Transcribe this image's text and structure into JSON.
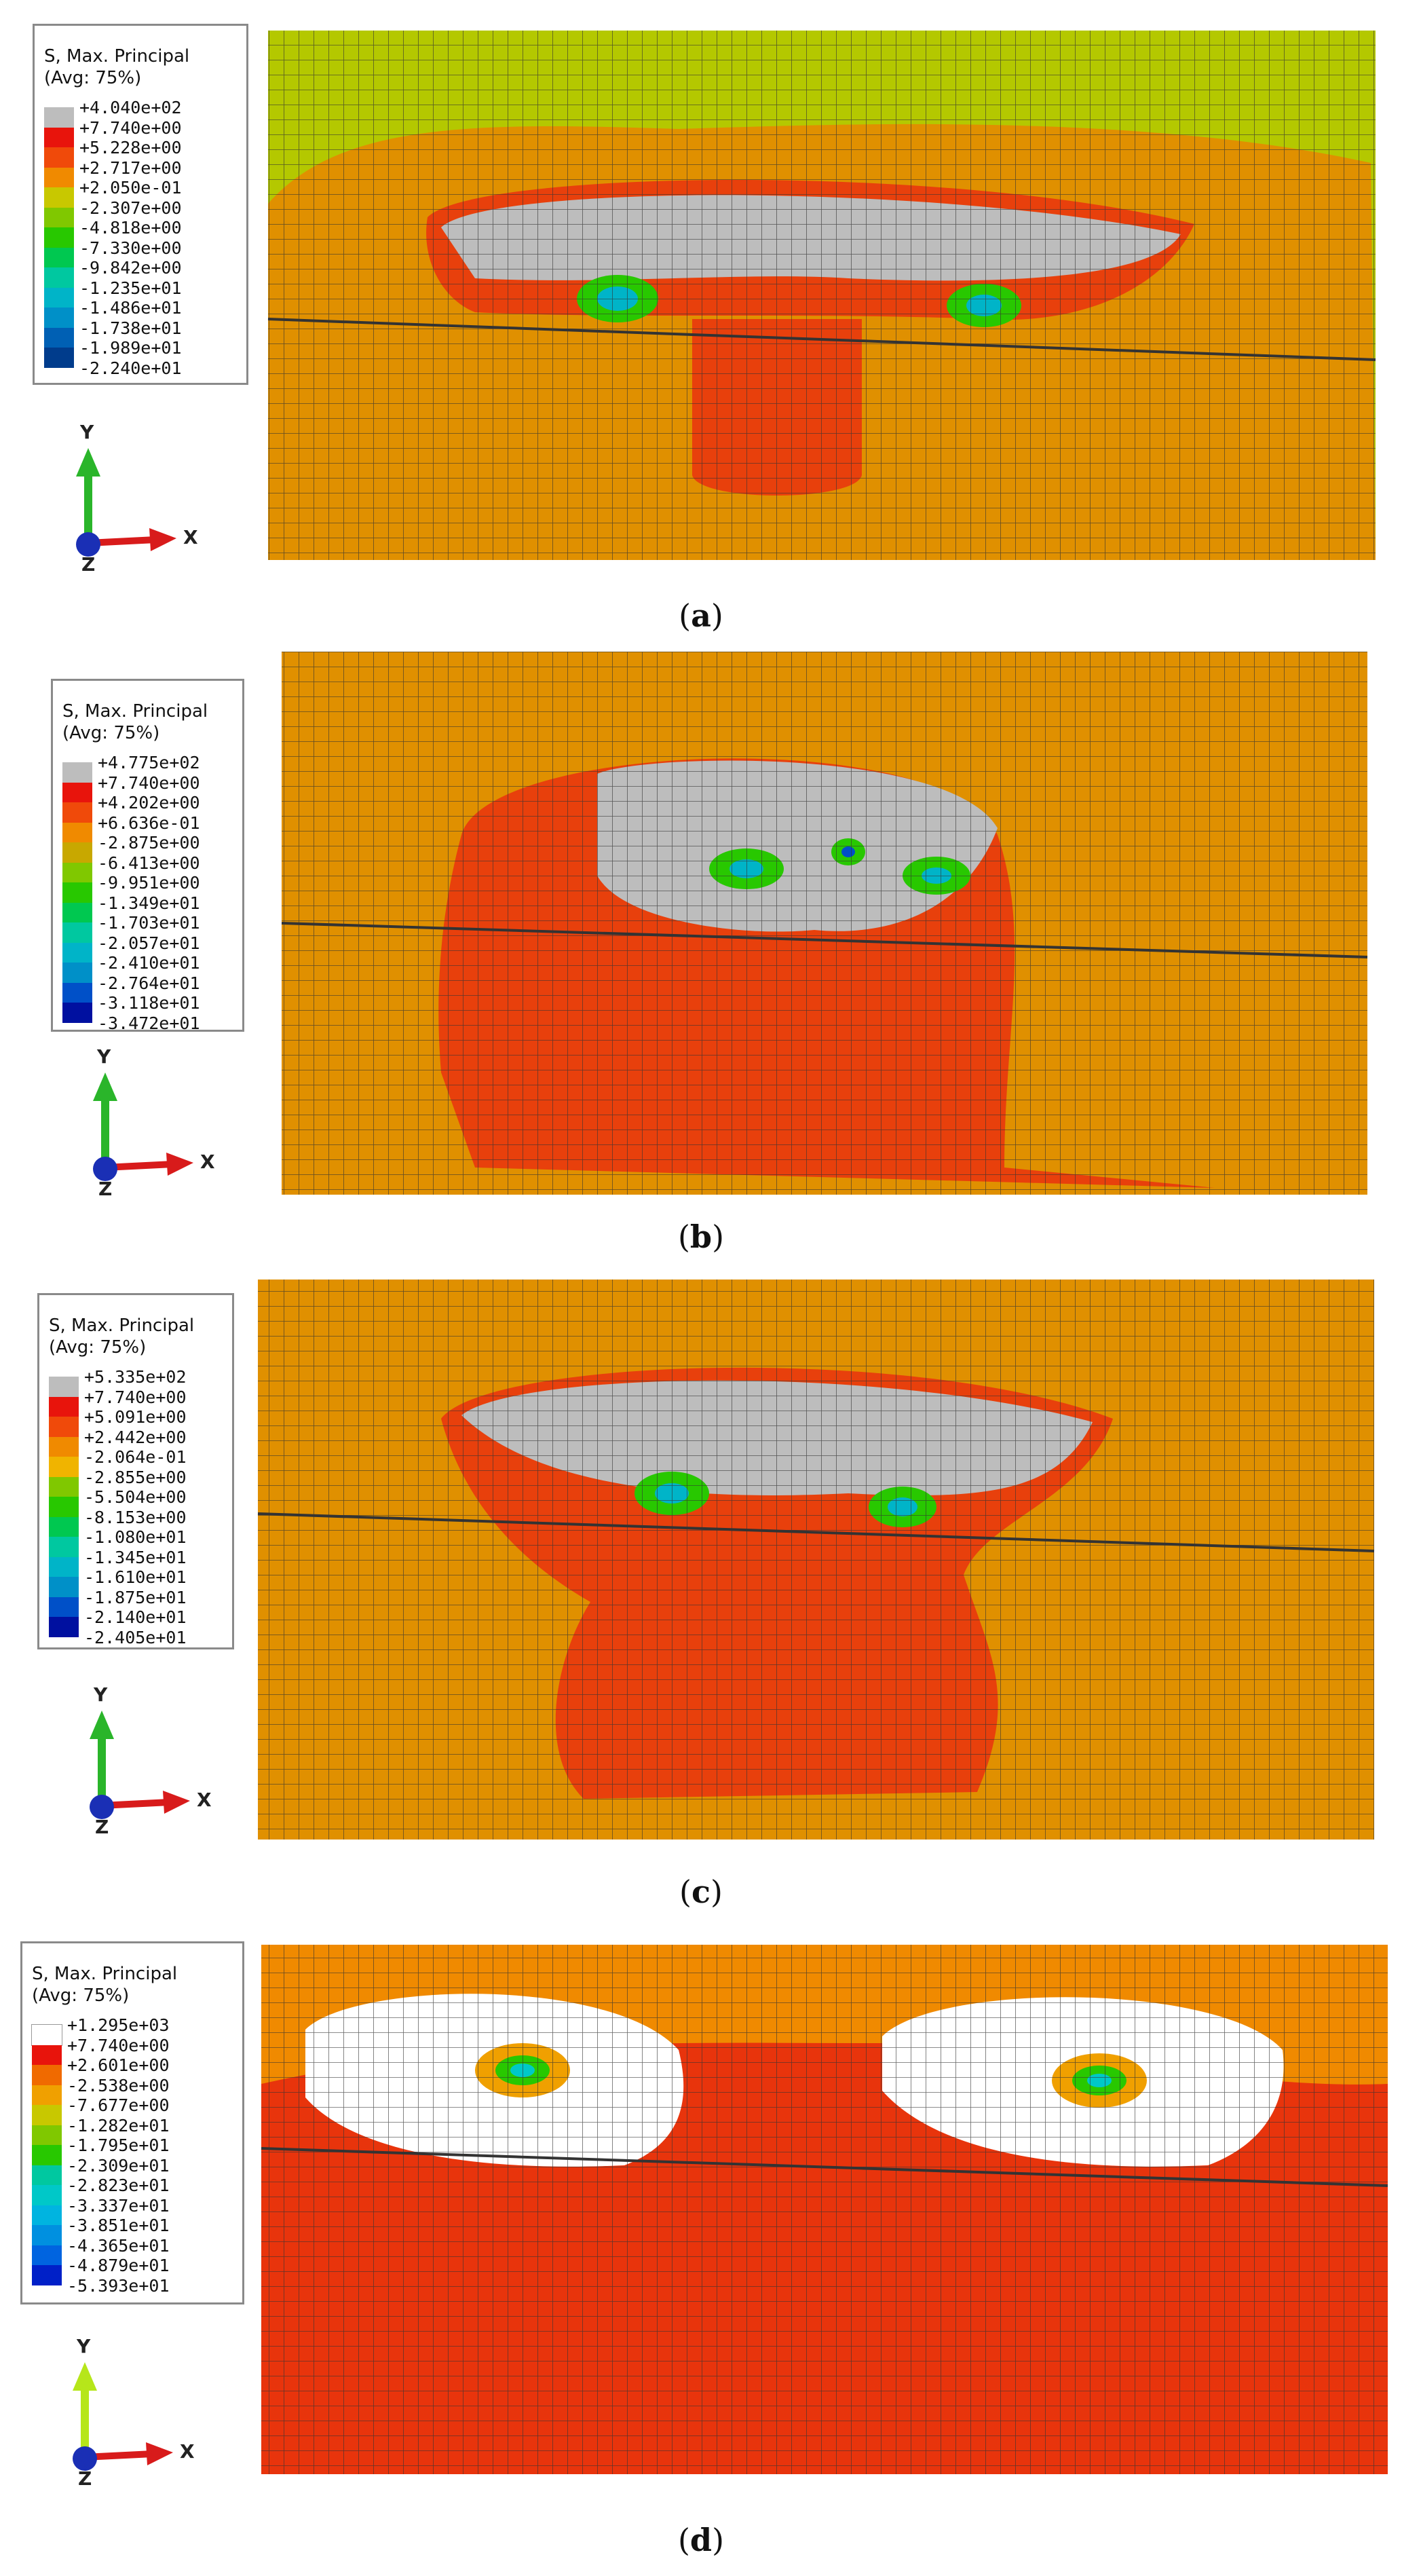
{
  "panels": [
    {
      "id": "a",
      "legend_title": [
        "S, Max. Principal",
        "(Avg: 75%)"
      ],
      "legend_values": [
        "+4.040e+02",
        "+7.740e+00",
        "+5.228e+00",
        "+2.717e+00",
        "+2.050e-01",
        "-2.307e+00",
        "-4.818e+00",
        "-7.330e+00",
        "-9.842e+00",
        "-1.235e+01",
        "-1.486e+01",
        "-1.738e+01",
        "-1.989e+01",
        "-2.240e+01"
      ],
      "legend_colors": [
        "#bdbdbd",
        "#e8140c",
        "#f04a0a",
        "#f08a00",
        "#c8c800",
        "#80c800",
        "#28c800",
        "#00c850",
        "#00c8a0",
        "#00b4c8",
        "#0090c8",
        "#0060b4",
        "#003c8c"
      ],
      "background_color": "#b4c800",
      "caption_label": "a"
    },
    {
      "id": "b",
      "legend_title": [
        "S, Max. Principal",
        "(Avg: 75%)"
      ],
      "legend_values": [
        "+4.775e+02",
        "+7.740e+00",
        "+4.202e+00",
        "+6.636e-01",
        "-2.875e+00",
        "-6.413e+00",
        "-9.951e+00",
        "-1.349e+01",
        "-1.703e+01",
        "-2.057e+01",
        "-2.410e+01",
        "-2.764e+01",
        "-3.118e+01",
        "-3.472e+01"
      ],
      "legend_colors": [
        "#bdbdbd",
        "#e8140c",
        "#f04a0a",
        "#f08a00",
        "#c8a800",
        "#80c800",
        "#28c800",
        "#00c850",
        "#00c8a0",
        "#00b4c8",
        "#0090c8",
        "#0050c8",
        "#0010a0"
      ],
      "background_color": "#e09000",
      "caption_label": "b"
    },
    {
      "id": "c",
      "legend_title": [
        "S, Max. Principal",
        "(Avg: 75%)"
      ],
      "legend_values": [
        "+5.335e+02",
        "+7.740e+00",
        "+5.091e+00",
        "+2.442e+00",
        "-2.064e-01",
        "-2.855e+00",
        "-5.504e+00",
        "-8.153e+00",
        "-1.080e+01",
        "-1.345e+01",
        "-1.610e+01",
        "-1.875e+01",
        "-2.140e+01",
        "-2.405e+01"
      ],
      "legend_colors": [
        "#bdbdbd",
        "#e8140c",
        "#f04a0a",
        "#f08a00",
        "#f0b400",
        "#80c800",
        "#28c800",
        "#00c850",
        "#00c8a0",
        "#00b4c8",
        "#0090c8",
        "#0050c8",
        "#0010a0"
      ],
      "background_color": "#e09000",
      "caption_label": "c"
    },
    {
      "id": "d",
      "legend_title": [
        "S, Max. Principal",
        "(Avg: 75%)"
      ],
      "legend_values": [
        "+1.295e+03",
        "+7.740e+00",
        "+2.601e+00",
        "-2.538e+00",
        "-7.677e+00",
        "-1.282e+01",
        "-1.795e+01",
        "-2.309e+01",
        "-2.823e+01",
        "-3.337e+01",
        "-3.851e+01",
        "-4.365e+01",
        "-4.879e+01",
        "-5.393e+01"
      ],
      "legend_colors": [
        "#ffffff",
        "#e8140c",
        "#f06a00",
        "#f0a000",
        "#c8c800",
        "#80c800",
        "#28c800",
        "#00c8a0",
        "#00c8c8",
        "#00b4e0",
        "#0090e0",
        "#0064e0",
        "#0020c8"
      ],
      "background_color": "#e8340c",
      "caption_label": "d"
    }
  ],
  "axis_labels": {
    "y": "Y",
    "x": "X",
    "z": "Z"
  }
}
